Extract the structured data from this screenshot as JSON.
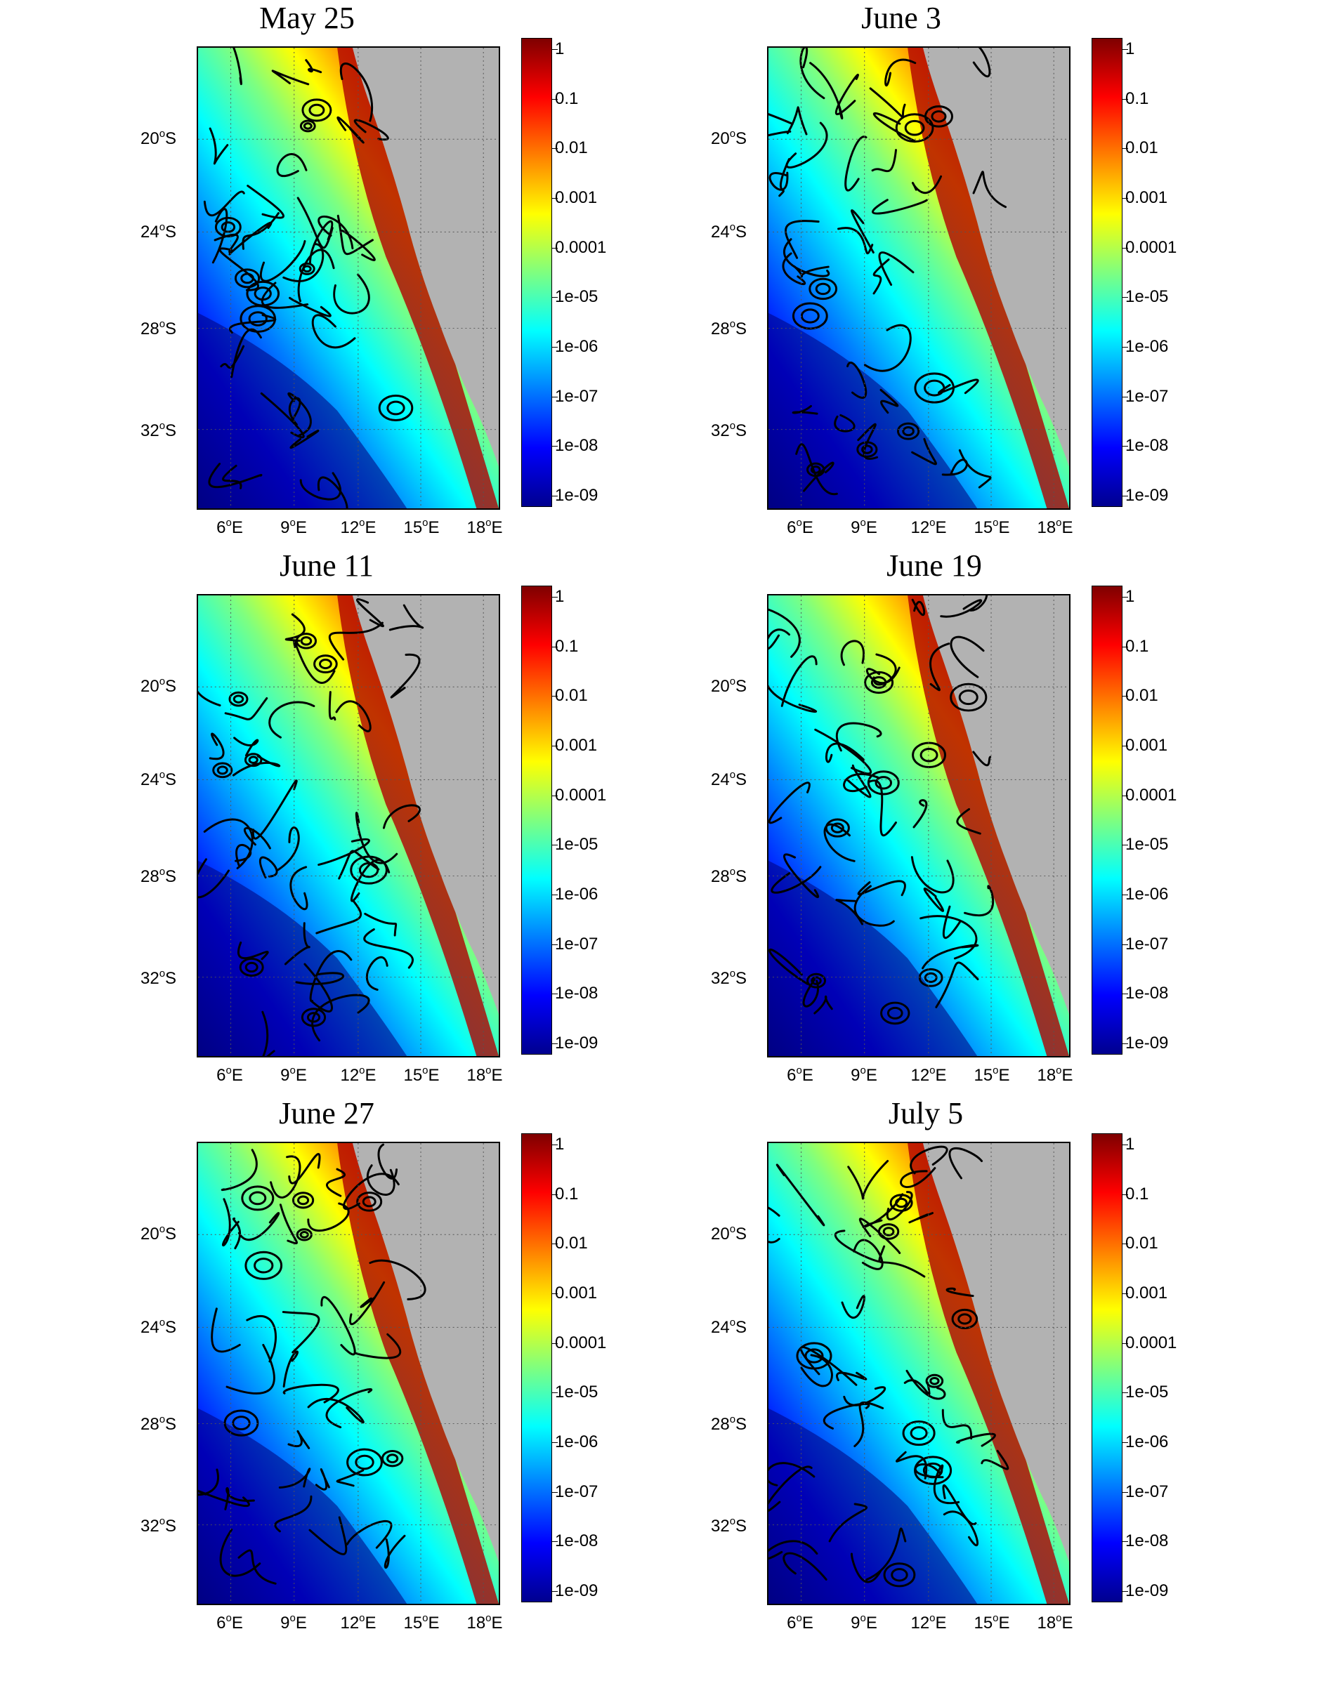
{
  "panels": [
    {
      "title": "May 25"
    },
    {
      "title": "June 3"
    },
    {
      "title": "June 11"
    },
    {
      "title": "June 19"
    },
    {
      "title": "June 27"
    },
    {
      "title": "July 5"
    }
  ],
  "lat_labels": [
    {
      "deg": "20",
      "suffix": "S"
    },
    {
      "deg": "24",
      "suffix": "S"
    },
    {
      "deg": "28",
      "suffix": "S"
    },
    {
      "deg": "32",
      "suffix": "S"
    }
  ],
  "lon_labels": [
    {
      "deg": "6",
      "suffix": "E"
    },
    {
      "deg": "9",
      "suffix": "E"
    },
    {
      "deg": "12",
      "suffix": "E"
    },
    {
      "deg": "15",
      "suffix": "E"
    },
    {
      "deg": "18",
      "suffix": "E"
    }
  ],
  "degree_symbol": "o",
  "colorbar_ticks": [
    "1",
    "0.1",
    "0.01",
    "0.001",
    "0.0001",
    "1e-05",
    "1e-06",
    "1e-07",
    "1e-08",
    "1e-09"
  ],
  "colors": {
    "land": "#b2b2b2",
    "colormap": [
      "#7f0000",
      "#ff0000",
      "#ff7f00",
      "#ffff00",
      "#7fff7f",
      "#00ffff",
      "#007fff",
      "#0000ff",
      "#00008f"
    ]
  }
}
